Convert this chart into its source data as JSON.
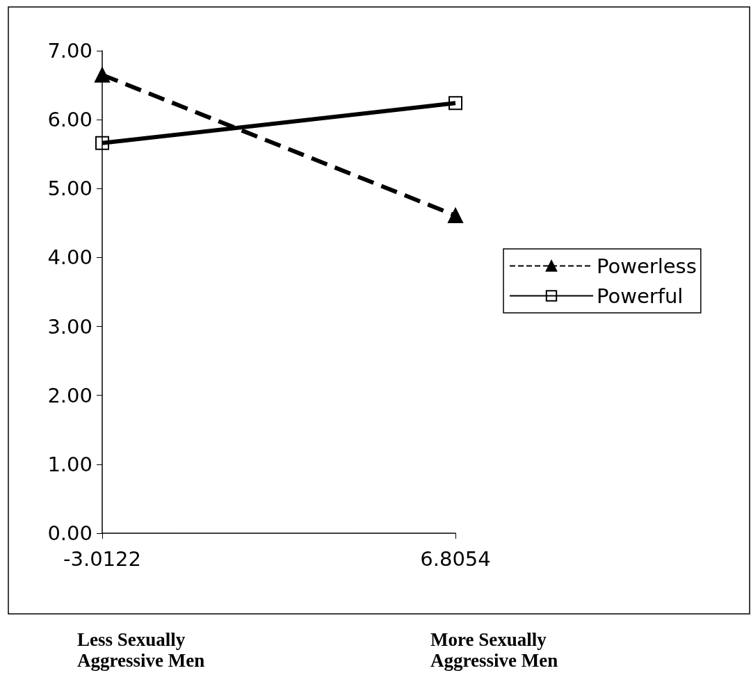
{
  "chart_data": {
    "type": "line",
    "categories": [
      "-3.0122",
      "6.8054"
    ],
    "series": [
      {
        "name": "Powerless",
        "color": "#000000",
        "values": [
          6.65,
          4.61
        ],
        "marker": "triangle",
        "line_style": "dashed"
      },
      {
        "name": "Powerful",
        "color": "#000000",
        "values": [
          5.66,
          6.24
        ],
        "marker": "square",
        "line_style": "solid"
      }
    ],
    "ylim": [
      0,
      7
    ],
    "yticks": [
      {
        "value": 0,
        "label": "0.00"
      },
      {
        "value": 1,
        "label": "1.00"
      },
      {
        "value": 2,
        "label": "2.00"
      },
      {
        "value": 3,
        "label": "3.00"
      },
      {
        "value": 4,
        "label": "4.00"
      },
      {
        "value": 5,
        "label": "5.00"
      },
      {
        "value": 6,
        "label": "6.00"
      },
      {
        "value": 7,
        "label": "7.00"
      }
    ],
    "grid": false,
    "legend": "right",
    "annotations": [
      "Less Sexually Aggressive Men",
      "More Sexually Aggressive Men"
    ]
  }
}
